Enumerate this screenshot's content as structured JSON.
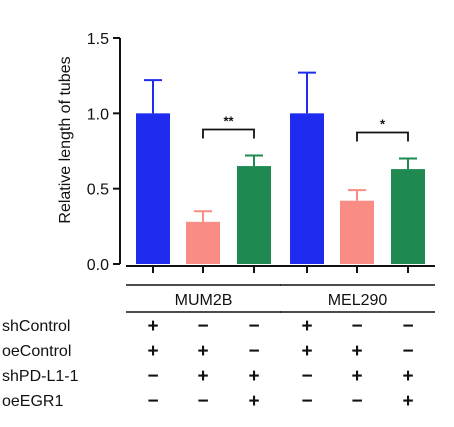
{
  "chart_data": {
    "type": "bar",
    "ylabel": "Relative length of tubes",
    "ylim": [
      0,
      1.5
    ],
    "yticks": [
      "0.0",
      "0.5",
      "1.0",
      "1.5"
    ],
    "groups": [
      {
        "name": "MUM2B",
        "bars": [
          {
            "value": 1.0,
            "error": 0.22,
            "color": "#1f2cf0"
          },
          {
            "value": 0.28,
            "error": 0.07,
            "color": "#f98c84"
          },
          {
            "value": 0.65,
            "error": 0.07,
            "color": "#1e8a52"
          }
        ],
        "significance": {
          "from": 1,
          "to": 2,
          "label": "**"
        }
      },
      {
        "name": "MEL290",
        "bars": [
          {
            "value": 1.0,
            "error": 0.27,
            "color": "#1f2cf0"
          },
          {
            "value": 0.42,
            "error": 0.07,
            "color": "#f98c84"
          },
          {
            "value": 0.63,
            "error": 0.07,
            "color": "#1e8a52"
          }
        ],
        "significance": {
          "from": 1,
          "to": 2,
          "label": "*"
        }
      }
    ],
    "conditions": [
      {
        "label": "shControl",
        "signs": [
          "+",
          "−",
          "−",
          "+",
          "−",
          "−"
        ]
      },
      {
        "label": "oeControl",
        "signs": [
          "+",
          "+",
          "−",
          "+",
          "+",
          "−"
        ]
      },
      {
        "label": "shPD-L1-1",
        "signs": [
          "−",
          "+",
          "+",
          "−",
          "+",
          "+"
        ]
      },
      {
        "label": "oeEGR1",
        "signs": [
          "−",
          "−",
          "+",
          "−",
          "−",
          "+"
        ]
      }
    ]
  }
}
